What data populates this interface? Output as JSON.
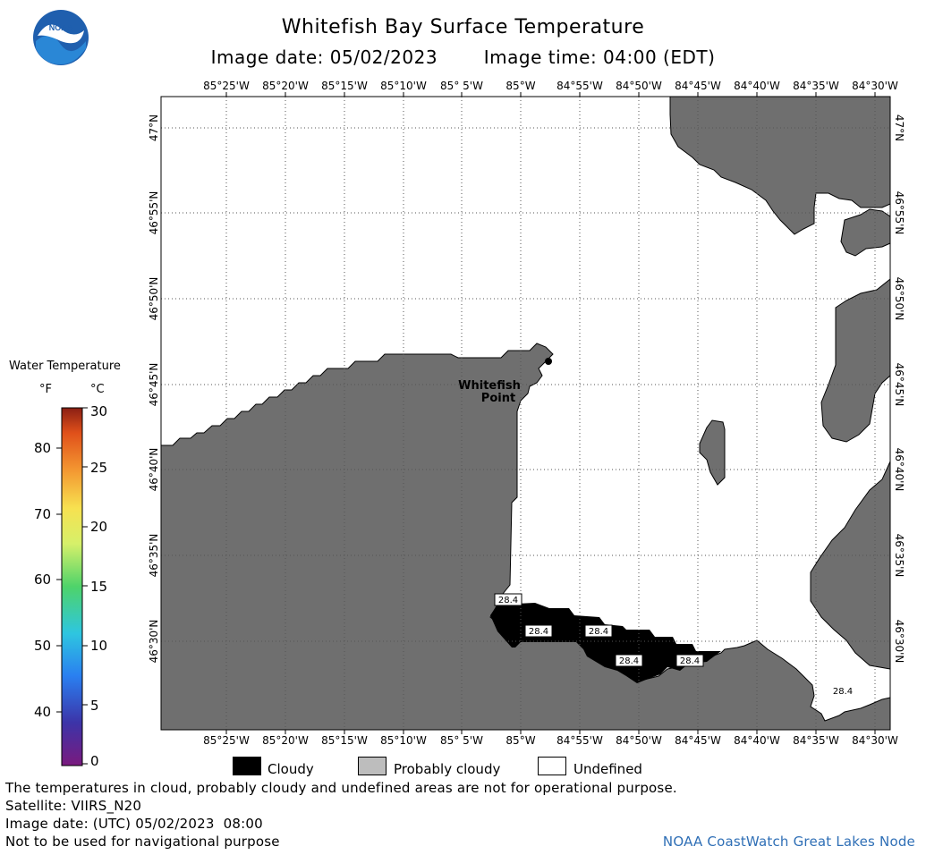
{
  "header": {
    "title": "Whitefish Bay Surface Temperature",
    "date_text": "Image date: 05/02/2023",
    "time_text": "Image time: 04:00 (EDT)"
  },
  "logo": {
    "text": "NOAA"
  },
  "map": {
    "longitude_labels": [
      "85°25'W",
      "85°20'W",
      "85°15'W",
      "85°10'W",
      "85° 5'W",
      "85°W",
      "84°55'W",
      "84°50'W",
      "84°45'W",
      "84°40'W",
      "84°35'W",
      "84°30'W"
    ],
    "latitude_labels": [
      "47°N",
      "46°55'N",
      "46°50'N",
      "46°45'N",
      "46°40'N",
      "46°35'N",
      "46°30'N"
    ],
    "place_label_line1": "Whitefish",
    "place_label_line2": "Point",
    "temperature_labels": [
      "28.4",
      "28.4",
      "28.4",
      "28.4",
      "28.4",
      "28.4"
    ],
    "colors": {
      "land": "#6f6f6f",
      "cloud": "#000000",
      "water": "#ffffff",
      "grid": "#555555"
    }
  },
  "legend": {
    "title": "Water Temperature",
    "unit_f": "°F",
    "unit_c": "°C",
    "f_ticks": [
      "80",
      "70",
      "60",
      "50",
      "40"
    ],
    "c_ticks": [
      "30",
      "25",
      "20",
      "15",
      "10",
      "5",
      "0"
    ],
    "keys": [
      {
        "label": "Cloudy",
        "color": "#000000"
      },
      {
        "label": "Probably cloudy",
        "color": "#bdbdbd"
      },
      {
        "label": "Undefined",
        "color": "#ffffff"
      }
    ]
  },
  "footer": {
    "line1": "The temperatures in cloud, probably cloudy and undefined areas are not for operational purpose.",
    "line2": "Satellite: VIIRS_N20",
    "line3": "Image date: (UTC) 05/02/2023  08:00",
    "line4": "Not to be used for navigational purpose",
    "credit": "NOAA CoastWatch Great Lakes Node"
  }
}
